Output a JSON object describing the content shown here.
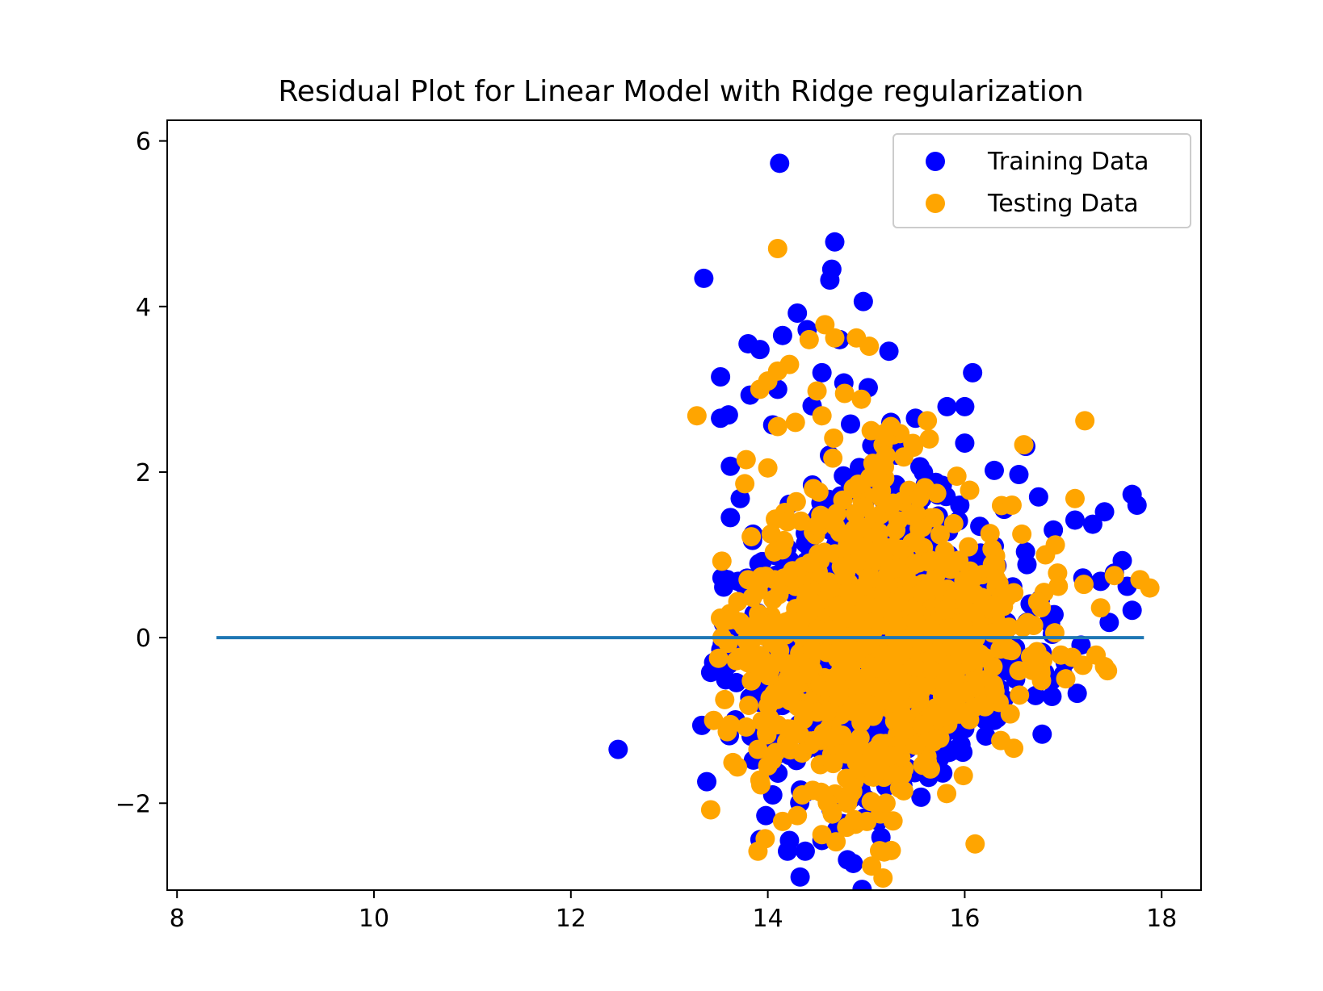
{
  "chart_data": {
    "type": "scatter",
    "title": "Residual Plot for Linear Model with Ridge regularization",
    "xlabel": "",
    "ylabel": "",
    "xlim": [
      7.9,
      18.4
    ],
    "ylim": [
      -3.05,
      6.25
    ],
    "xticks": [
      8,
      10,
      12,
      14,
      16,
      18
    ],
    "yticks": [
      -2,
      0,
      2,
      4,
      6
    ],
    "xtick_labels": [
      "8",
      "10",
      "12",
      "14",
      "16",
      "18"
    ],
    "ytick_labels": [
      "−2",
      "0",
      "2",
      "4",
      "6"
    ],
    "grid": false,
    "legend_position": "top-right",
    "series": [
      {
        "name": "Training Data",
        "color": "#0000ff",
        "points": [
          [
            14.12,
            5.73
          ],
          [
            13.35,
            4.34
          ],
          [
            14.68,
            4.78
          ],
          [
            14.65,
            4.45
          ],
          [
            14.63,
            4.32
          ],
          [
            14.97,
            4.06
          ],
          [
            14.3,
            3.92
          ],
          [
            14.15,
            3.65
          ],
          [
            13.8,
            3.55
          ],
          [
            13.92,
            3.48
          ],
          [
            14.73,
            3.6
          ],
          [
            15.23,
            3.46
          ],
          [
            13.52,
            3.15
          ],
          [
            14.55,
            3.2
          ],
          [
            16.08,
            3.2
          ],
          [
            15.02,
            3.02
          ],
          [
            15.82,
            2.79
          ],
          [
            16.0,
            2.79
          ],
          [
            13.52,
            2.65
          ],
          [
            13.6,
            2.69
          ],
          [
            15.25,
            2.6
          ],
          [
            15.5,
            2.65
          ],
          [
            16.0,
            2.35
          ],
          [
            13.82,
            2.93
          ],
          [
            14.05,
            2.57
          ],
          [
            14.84,
            2.58
          ],
          [
            16.3,
            2.02
          ],
          [
            16.55,
            1.97
          ],
          [
            16.62,
            2.31
          ],
          [
            13.62,
            2.07
          ],
          [
            17.7,
            1.73
          ],
          [
            17.75,
            1.6
          ],
          [
            17.42,
            1.52
          ],
          [
            17.3,
            1.37
          ],
          [
            17.12,
            1.42
          ],
          [
            16.75,
            1.7
          ],
          [
            17.6,
            0.93
          ],
          [
            17.52,
            0.78
          ],
          [
            17.65,
            0.62
          ],
          [
            17.38,
            0.68
          ],
          [
            17.7,
            0.33
          ],
          [
            17.2,
            0.72
          ],
          [
            17.02,
            -0.3
          ],
          [
            17.0,
            -0.45
          ],
          [
            16.88,
            -0.52
          ],
          [
            16.72,
            -0.7
          ],
          [
            16.3,
            -1.0
          ],
          [
            16.18,
            -0.85
          ],
          [
            16.0,
            -1.1
          ],
          [
            15.7,
            -1.45
          ],
          [
            15.6,
            -1.6
          ],
          [
            15.2,
            -1.8
          ],
          [
            15.0,
            -1.95
          ],
          [
            14.98,
            -2.18
          ],
          [
            14.7,
            -2.32
          ],
          [
            14.55,
            -2.45
          ],
          [
            14.38,
            -2.58
          ],
          [
            14.2,
            -2.58
          ],
          [
            14.22,
            -2.45
          ],
          [
            13.98,
            -2.15
          ],
          [
            13.92,
            -2.44
          ],
          [
            14.05,
            -1.9
          ],
          [
            13.38,
            -1.74
          ],
          [
            13.33,
            -1.06
          ],
          [
            12.48,
            -1.35
          ],
          [
            13.42,
            -0.42
          ],
          [
            13.45,
            -0.3
          ],
          [
            13.55,
            0.17
          ],
          [
            13.7,
            0.68
          ],
          [
            13.62,
            1.45
          ],
          [
            13.72,
            1.68
          ],
          [
            13.85,
            1.25
          ],
          [
            14.4,
            3.72
          ],
          [
            14.1,
            3.0
          ],
          [
            14.45,
            2.8
          ],
          [
            15.35,
            2.25
          ],
          [
            15.6,
            1.85
          ],
          [
            15.95,
            1.6
          ],
          [
            16.4,
            1.55
          ],
          [
            16.9,
            1.3
          ]
        ]
      },
      {
        "name": "Testing Data",
        "color": "#ffa500",
        "points": [
          [
            14.1,
            4.7
          ],
          [
            14.58,
            3.78
          ],
          [
            14.68,
            3.62
          ],
          [
            14.9,
            3.62
          ],
          [
            15.03,
            3.52
          ],
          [
            14.42,
            3.6
          ],
          [
            14.22,
            3.3
          ],
          [
            14.1,
            3.22
          ],
          [
            13.92,
            3.0
          ],
          [
            14.0,
            3.1
          ],
          [
            14.78,
            2.95
          ],
          [
            14.95,
            2.88
          ],
          [
            14.5,
            2.98
          ],
          [
            13.28,
            2.68
          ],
          [
            14.55,
            2.68
          ],
          [
            15.25,
            2.55
          ],
          [
            15.62,
            2.62
          ],
          [
            15.05,
            2.5
          ],
          [
            15.64,
            2.4
          ],
          [
            14.1,
            2.55
          ],
          [
            14.28,
            2.6
          ],
          [
            16.6,
            2.33
          ],
          [
            17.22,
            2.62
          ],
          [
            13.78,
            2.15
          ],
          [
            14.0,
            2.05
          ],
          [
            15.48,
            2.3
          ],
          [
            15.2,
            2.2
          ],
          [
            17.12,
            1.68
          ],
          [
            16.48,
            1.6
          ],
          [
            15.92,
            1.95
          ],
          [
            16.05,
            1.78
          ],
          [
            16.58,
            1.25
          ],
          [
            16.92,
            1.12
          ],
          [
            16.82,
            1.0
          ],
          [
            17.52,
            0.75
          ],
          [
            17.78,
            0.7
          ],
          [
            17.88,
            0.6
          ],
          [
            17.38,
            0.36
          ],
          [
            16.95,
            0.62
          ],
          [
            17.42,
            -0.35
          ],
          [
            17.45,
            -0.4
          ],
          [
            16.78,
            -0.52
          ],
          [
            16.7,
            -0.35
          ],
          [
            13.5,
            -0.25
          ],
          [
            13.62,
            -1.05
          ],
          [
            13.78,
            -1.08
          ],
          [
            13.45,
            -1.0
          ],
          [
            13.9,
            -1.35
          ],
          [
            13.92,
            -1.72
          ],
          [
            13.42,
            -2.08
          ],
          [
            13.9,
            -2.58
          ],
          [
            14.15,
            -2.22
          ],
          [
            14.3,
            -2.15
          ],
          [
            14.55,
            -2.38
          ],
          [
            14.65,
            -2.1
          ],
          [
            14.88,
            -2.2
          ],
          [
            15.05,
            -1.98
          ],
          [
            15.2,
            -2.0
          ],
          [
            15.38,
            -1.85
          ],
          [
            15.62,
            -1.5
          ],
          [
            14.0,
            -1.55
          ],
          [
            14.35,
            -1.9
          ],
          [
            14.8,
            -1.7
          ],
          [
            15.5,
            -1.3
          ],
          [
            16.0,
            -0.9
          ],
          [
            16.3,
            -0.6
          ],
          [
            16.55,
            -0.4
          ],
          [
            16.1,
            0.3
          ],
          [
            15.8,
            0.9
          ],
          [
            15.3,
            1.3
          ],
          [
            14.7,
            1.5
          ],
          [
            14.2,
            1.4
          ],
          [
            13.8,
            0.7
          ],
          [
            13.9,
            0.2
          ],
          [
            14.5,
            0.1
          ],
          [
            15.0,
            0.4
          ],
          [
            15.5,
            0.2
          ],
          [
            15.1,
            -0.6
          ],
          [
            14.6,
            -0.9
          ],
          [
            14.2,
            -0.5
          ]
        ]
      }
    ],
    "reference_line": {
      "x": [
        8.4,
        17.82
      ],
      "y": [
        0,
        0
      ],
      "color": "#1f77b4"
    }
  }
}
